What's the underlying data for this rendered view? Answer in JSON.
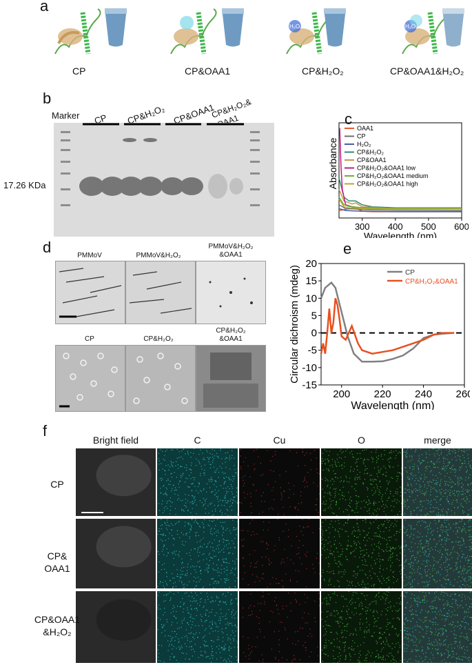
{
  "panels": {
    "a": {
      "label": "a",
      "captions": [
        "CP",
        "CP&OAA1",
        "CP&H₂O₂",
        "CP&OAA1&H₂O₂"
      ],
      "tag": "H₂O₂"
    },
    "b": {
      "label": "b",
      "marker": "Marker",
      "lanes": [
        "CP",
        "CP&H₂O₂",
        "CP&OAA1",
        "CP&H₂O₂&",
        "OAA1"
      ],
      "mw": "17.26 KDa"
    },
    "c": {
      "label": "c",
      "ylabel": "Absorbance",
      "xlabel": "Wavelength (nm)",
      "legend": [
        "OAA1",
        "CP",
        "H₂O₂",
        "CP&H₂O₂",
        "CP&OAA1",
        "CP&H₂O₂&OAA1 low",
        "CP&H₂O₂&OAA1 medium",
        "CP&H₂O₂&OAA1 high"
      ],
      "colors": [
        "#e8572a",
        "#6d6d6d",
        "#4a5aa0",
        "#2e8b72",
        "#c8964a",
        "#c2187e",
        "#6cae3a",
        "#b8a82a"
      ]
    },
    "d": {
      "label": "d",
      "top": [
        "PMMoV",
        "PMMoV&H₂O₂",
        "PMMoV&H₂O₂",
        "&OAA1"
      ],
      "bottom": [
        "CP",
        "CP&H₂O₂",
        "CP&H₂O₂",
        "&OAA1"
      ]
    },
    "e": {
      "label": "e",
      "ylabel": "Circular dichroism (mdeg)",
      "xlabel": "Wavelength (nm)",
      "legend": [
        "CP",
        "CP&H₂O₂&OAA1"
      ]
    },
    "f": {
      "label": "f",
      "columns": [
        "Bright field",
        "C",
        "Cu",
        "O",
        "merge"
      ],
      "rows": [
        "CP",
        "CP&",
        "OAA1",
        "CP&OAA1",
        "&H₂O₂"
      ]
    }
  },
  "chart_data": [
    {
      "type": "line",
      "id": "c",
      "xlabel": "Wavelength (nm)",
      "ylabel": "Absorbance",
      "xlim": [
        230,
        600
      ],
      "x_ticks": [
        300,
        400,
        500,
        600
      ],
      "series": [
        {
          "name": "OAA1",
          "x": [
            230,
            250,
            270,
            285,
            300,
            330,
            400,
            600
          ],
          "values": [
            0.05,
            0.08,
            0.12,
            0.1,
            0.03,
            0.02,
            0.02,
            0.02
          ]
        },
        {
          "name": "CP",
          "x": [
            230,
            250,
            280,
            300,
            400,
            600
          ],
          "values": [
            0.2,
            0.1,
            0.09,
            0.07,
            0.06,
            0.05
          ]
        },
        {
          "name": "H₂O₂",
          "x": [
            230,
            250,
            300,
            400,
            600
          ],
          "values": [
            0.1,
            0.05,
            0.03,
            0.02,
            0.02
          ]
        },
        {
          "name": "CP&H₂O₂",
          "x": [
            230,
            245,
            260,
            280,
            300,
            330,
            400,
            600
          ],
          "values": [
            0.9,
            0.4,
            0.3,
            0.3,
            0.2,
            0.15,
            0.12,
            0.12
          ]
        },
        {
          "name": "CP&OAA1",
          "x": [
            230,
            245,
            270,
            280,
            300,
            400,
            600
          ],
          "values": [
            0.6,
            0.3,
            0.22,
            0.25,
            0.15,
            0.1,
            0.1
          ]
        },
        {
          "name": "CP&H₂O₂&OAA1 low",
          "x": [
            232,
            236,
            240,
            250,
            270,
            300,
            400,
            600
          ],
          "values": [
            2.2,
            1.2,
            0.6,
            0.2,
            0.15,
            0.12,
            0.1,
            0.1
          ]
        },
        {
          "name": "CP&H₂O₂&OAA1 medium",
          "x": [
            230,
            245,
            260,
            300,
            400,
            600
          ],
          "values": [
            0.4,
            0.2,
            0.16,
            0.12,
            0.11,
            0.11
          ]
        },
        {
          "name": "CP&H₂O₂&OAA1 high",
          "x": [
            230,
            245,
            260,
            300,
            400,
            600
          ],
          "values": [
            0.35,
            0.15,
            0.12,
            0.1,
            0.09,
            0.09
          ]
        }
      ]
    },
    {
      "type": "line",
      "id": "e",
      "xlabel": "Wavelength (nm)",
      "ylabel": "Circular dichroism (mdeg)",
      "xlim": [
        190,
        260
      ],
      "ylim": [
        -15,
        20
      ],
      "x_ticks": [
        200,
        220,
        240,
        260
      ],
      "y_ticks": [
        -15,
        -10,
        -5,
        0,
        5,
        10,
        15,
        20
      ],
      "series": [
        {
          "name": "CP",
          "x": [
            190,
            192,
            195,
            197,
            200,
            203,
            206,
            210,
            215,
            220,
            225,
            230,
            235,
            240,
            245,
            250,
            255
          ],
          "values": [
            10,
            13,
            14.5,
            13,
            6,
            -1,
            -6,
            -8.3,
            -8.3,
            -8.2,
            -7.5,
            -6.5,
            -4.5,
            -1.5,
            -0.5,
            -0.2,
            0
          ]
        },
        {
          "name": "CP&H₂O₂&OAA1",
          "x": [
            190,
            191,
            192,
            193,
            194,
            195,
            196,
            197,
            198,
            199,
            200,
            202,
            205,
            208,
            210,
            215,
            220,
            225,
            230,
            235,
            240,
            245,
            250,
            255
          ],
          "values": [
            -6,
            -3,
            -6,
            0,
            7,
            0,
            3,
            10,
            8,
            4,
            -1,
            -2,
            2,
            -3,
            -5,
            -6,
            -5.5,
            -5,
            -4,
            -3,
            -2,
            -0.5,
            0,
            0
          ]
        }
      ]
    }
  ]
}
